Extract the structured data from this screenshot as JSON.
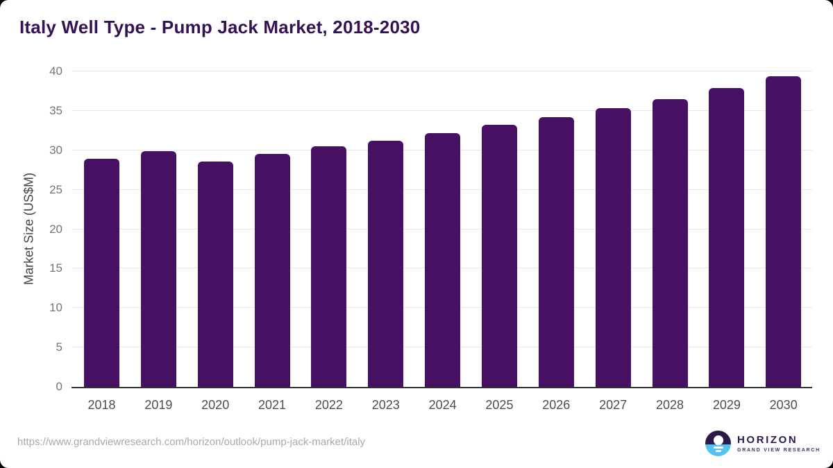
{
  "title": "Italy Well Type - Pump Jack Market, 2018-2030",
  "footer": {
    "source_url": "https://www.grandviewresearch.com/horizon/outlook/pump-jack-market/italy",
    "logo": {
      "name": "HORIZON",
      "subtitle": "GRAND VIEW RESEARCH",
      "icon": "horizon-sun-over-water-icon"
    }
  },
  "colors": {
    "bar": "#481063",
    "title": "#371253",
    "gridline": "#e9e9e9",
    "axis_line": "#2f2f2f",
    "y_tick_text": "#757575",
    "x_tick_text": "#4d4d4d",
    "url_text": "#a9a9a9",
    "logo_purple": "#2e1a47",
    "logo_blue": "#55c3ef"
  },
  "chart_data": {
    "type": "bar",
    "title": "Italy Well Type - Pump Jack Market, 2018-2030",
    "categories": [
      "2018",
      "2019",
      "2020",
      "2021",
      "2022",
      "2023",
      "2024",
      "2025",
      "2026",
      "2027",
      "2028",
      "2029",
      "2030"
    ],
    "values": [
      28.9,
      29.9,
      28.6,
      29.5,
      30.5,
      31.2,
      32.2,
      33.2,
      34.2,
      35.3,
      36.5,
      37.9,
      39.4
    ],
    "xlabel": "",
    "ylabel": "Market Size (US$M)",
    "ylim": [
      0,
      40
    ],
    "ytick_step": 5,
    "grid": true,
    "legend": "none",
    "bar_color": "#481063"
  }
}
